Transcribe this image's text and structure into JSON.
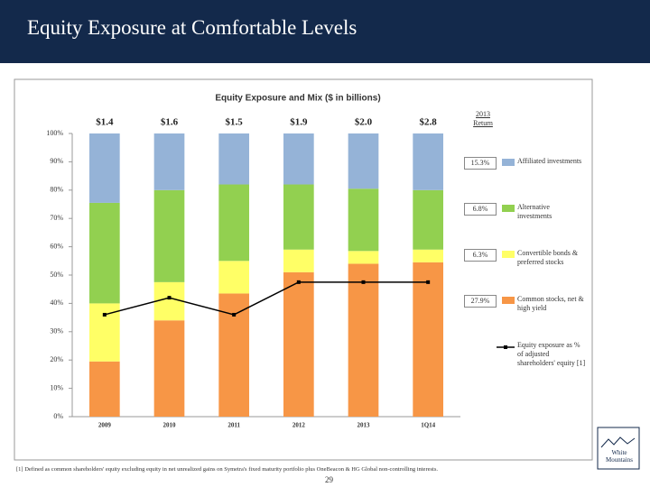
{
  "header": {
    "title": "Equity Exposure at Comfortable Levels"
  },
  "chart_data": {
    "type": "bar",
    "stacked": true,
    "title": "Equity Exposure and Mix ($ in billions)",
    "categories": [
      "2009",
      "2010",
      "2011",
      "2012",
      "2013",
      "1Q14"
    ],
    "top_labels": [
      "$1.4",
      "$1.6",
      "$1.5",
      "$1.9",
      "$2.0",
      "$2.8"
    ],
    "return_header": "2013 Return",
    "series": [
      {
        "name": "Common stocks, net & high yield",
        "color": "#f79646",
        "values": [
          19.5,
          34,
          43.5,
          51,
          54,
          54.5
        ],
        "return_label": "27.9%"
      },
      {
        "name": "Convertible bonds & preferred stocks",
        "color": "#ffff66",
        "values": [
          20.5,
          13.5,
          11.5,
          8,
          4.5,
          4.5
        ],
        "return_label": "6.3%"
      },
      {
        "name": "Alternative investments",
        "color": "#92d050",
        "values": [
          35.5,
          32.5,
          27,
          23,
          22,
          21
        ],
        "return_label": "6.8%"
      },
      {
        "name": "Affiliated investments",
        "color": "#95b3d7",
        "values": [
          24.5,
          20,
          18,
          18,
          19.5,
          20
        ],
        "return_label": "15.3%"
      },
      {
        "name": "Equity exposure as % of adjusted shareholders' equity [1]",
        "type": "line",
        "color": "#000000",
        "values": [
          36,
          42,
          36,
          47.5,
          47.5,
          47.5
        ]
      }
    ],
    "ylim": [
      0,
      100
    ],
    "yticks": [
      {
        "value": 0,
        "label": "0%"
      },
      {
        "value": 10,
        "label": "10%"
      },
      {
        "value": 20,
        "label": "20%"
      },
      {
        "value": 30,
        "label": "30%"
      },
      {
        "value": 40,
        "label": "40%"
      },
      {
        "value": 50,
        "label": "50%"
      },
      {
        "value": 60,
        "label": "60%"
      },
      {
        "value": 70,
        "label": "70%"
      },
      {
        "value": 80,
        "label": "80%"
      },
      {
        "value": 90,
        "label": "90%"
      },
      {
        "value": 100,
        "label": "100%"
      }
    ]
  },
  "footnote": "[1] Defined as common shareholders' equity excluding equity in net unrealized gains on Symetra's fixed maturity portfolio plus OneBeacon & HG Global non-controlling interests.",
  "page_number": "29",
  "logo": "White Mountains"
}
